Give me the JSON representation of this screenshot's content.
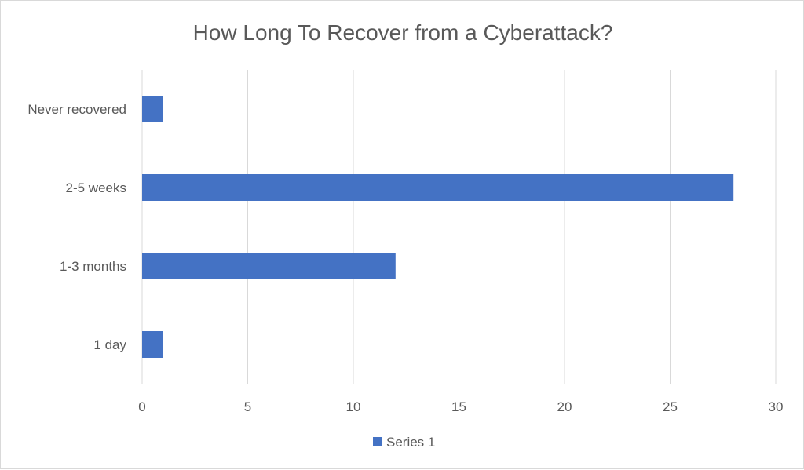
{
  "chart_data": {
    "type": "bar",
    "orientation": "horizontal",
    "title": "How Long To Recover from a Cyberattack?",
    "categories": [
      "Never recovered",
      "2-5 weeks",
      "1-3 months",
      "1 day"
    ],
    "series": [
      {
        "name": "Series 1",
        "values": [
          1,
          28,
          12,
          1
        ],
        "color": "#4472c4"
      }
    ],
    "xlim": [
      0,
      30
    ],
    "x_ticks": [
      "0",
      "5",
      "10",
      "15",
      "20",
      "25",
      "30"
    ],
    "xlabel": "",
    "ylabel": "",
    "grid": "vertical",
    "legend_position": "bottom"
  }
}
